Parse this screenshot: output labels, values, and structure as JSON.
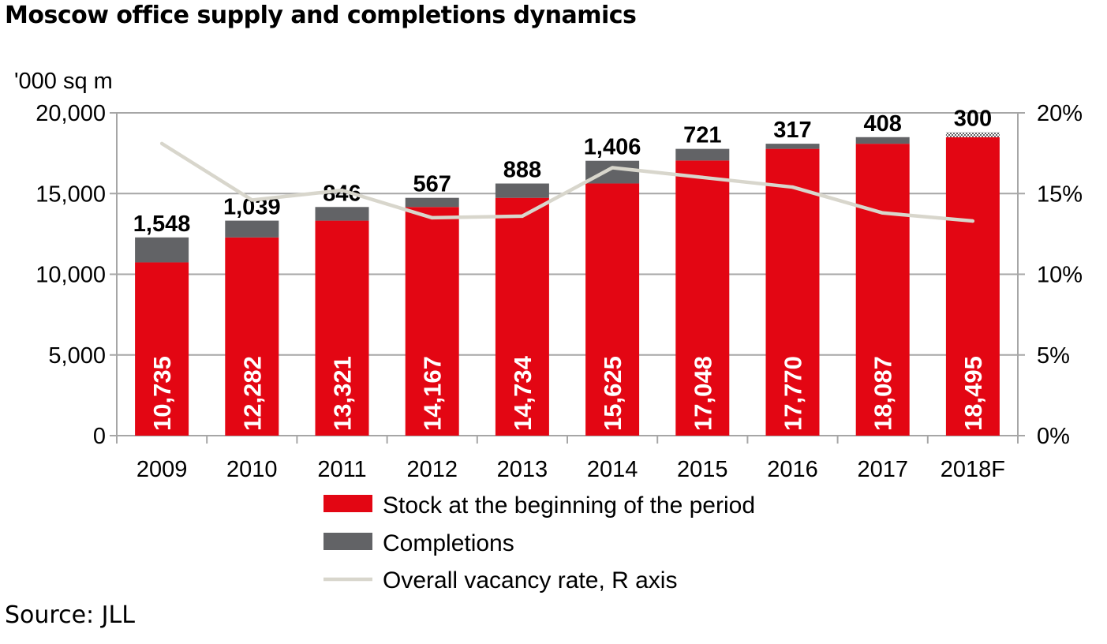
{
  "title": "Moscow office supply and completions dynamics",
  "source": "Source: JLL",
  "chart_data": {
    "type": "bar",
    "stacked": true,
    "categories": [
      "2009",
      "2010",
      "2011",
      "2012",
      "2013",
      "2014",
      "2015",
      "2016",
      "2017",
      "2018F"
    ],
    "series": [
      {
        "name": "Stock at the beginning of the period",
        "color": "#e30613",
        "values": [
          10735,
          12282,
          13321,
          14167,
          14734,
          15625,
          17048,
          17770,
          18087,
          18495
        ],
        "labels": [
          "10,735",
          "12,282",
          "13,321",
          "14,167",
          "14,734",
          "15,625",
          "17,048",
          "17,770",
          "18,087",
          "18,495"
        ]
      },
      {
        "name": "Completions",
        "color": "#626366",
        "values": [
          1548,
          1039,
          846,
          567,
          888,
          1406,
          721,
          317,
          408,
          300
        ],
        "labels": [
          "1,548",
          "1,039",
          "846",
          "567",
          "888",
          "1,406",
          "721",
          "317",
          "408",
          "300"
        ],
        "forecast_pattern_last": true
      },
      {
        "name": "Overall vacancy rate, R axis",
        "color": "#d8d6cc",
        "type": "line",
        "axis": "right",
        "values": [
          18.1,
          14.6,
          15.2,
          13.5,
          13.6,
          16.6,
          16.0,
          15.4,
          13.8,
          13.3
        ]
      }
    ],
    "ylabel": "'000 sq m",
    "ylim": [
      0,
      20000
    ],
    "y_ticks": [
      "0",
      "5,000",
      "10,000",
      "15,000",
      "20,000"
    ],
    "y2lim": [
      0,
      20
    ],
    "y2_ticks": [
      "0%",
      "5%",
      "10%",
      "15%",
      "20%"
    ],
    "grid": true,
    "legend_position": "bottom"
  }
}
